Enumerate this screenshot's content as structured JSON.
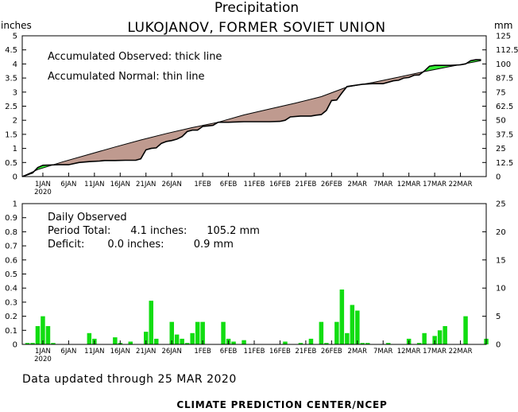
{
  "header": {
    "title": "Precipitation",
    "subtitle": "LUKOJANOV, FORMER SOVIET UNION",
    "left_unit": "inches",
    "right_unit": "mm"
  },
  "annotations": {
    "observed_note": "Accumulated Observed: thick line",
    "normal_note": "Accumulated Normal: thin line",
    "daily_title": "Daily Observed",
    "period_total": "Period Total:      4.1 inches:      105.2 mm",
    "deficit": "Deficit:       0.0 inches:         0.9 mm"
  },
  "footer": {
    "updated": "Data updated through 25 MAR 2020",
    "credit": "CLIMATE PREDICTION CENTER/NCEP"
  },
  "colors": {
    "deficit_fill": "#bf9a8f",
    "surplus_fill": "#33ee33",
    "bar": "#11dd11",
    "axis": "#000000"
  },
  "chart_data": [
    {
      "type": "area",
      "x_tick_labels": [
        "1JAN",
        "6JAN",
        "11JAN",
        "16JAN",
        "21JAN",
        "26JAN",
        "1FEB",
        "6FEB",
        "11FEB",
        "16FEB",
        "21FEB",
        "26FEB",
        "2MAR",
        "7MAR",
        "12MAR",
        "17MAR",
        "22MAR"
      ],
      "x_tick_year": "2020",
      "x_tick_days": [
        1,
        6,
        11,
        16,
        21,
        26,
        32,
        37,
        42,
        47,
        52,
        57,
        62,
        67,
        72,
        77,
        82
      ],
      "day_range": [
        -3,
        87
      ],
      "left_axis_ticks": [
        "0",
        "0.5",
        "1",
        "1.5",
        "2",
        "2.5",
        "3",
        "3.5",
        "4",
        "4.5",
        "5"
      ],
      "right_axis_ticks": [
        "0",
        "12.5",
        "25",
        "37.5",
        "50",
        "62.5",
        "75",
        "87.5",
        "100",
        "112.5",
        "125"
      ],
      "ylim_inches": [
        0,
        5
      ],
      "ylim_mm": [
        0,
        125
      ],
      "series": [
        {
          "name": "Accumulated Observed",
          "day": [
            -3,
            -1,
            0,
            1,
            4,
            6,
            8,
            10,
            12,
            13,
            15,
            17,
            19,
            20,
            21,
            22,
            23,
            24,
            25,
            26,
            27,
            28,
            29,
            30,
            31,
            32,
            33,
            34,
            35,
            37,
            40,
            42,
            45,
            47,
            48,
            49,
            51,
            52,
            53,
            54,
            55,
            56,
            57,
            58,
            59,
            60,
            63,
            65,
            67,
            69,
            70,
            71,
            72,
            73,
            74,
            75,
            76,
            77,
            78,
            80,
            82,
            83,
            84,
            85,
            86
          ],
          "inches": [
            0,
            0.13,
            0.32,
            0.4,
            0.42,
            0.42,
            0.5,
            0.53,
            0.55,
            0.57,
            0.57,
            0.58,
            0.58,
            0.63,
            0.95,
            1.0,
            1.02,
            1.18,
            1.25,
            1.28,
            1.33,
            1.42,
            1.6,
            1.65,
            1.65,
            1.78,
            1.8,
            1.82,
            1.93,
            1.93,
            1.95,
            1.95,
            1.95,
            1.96,
            2.0,
            2.12,
            2.15,
            2.15,
            2.15,
            2.18,
            2.2,
            2.35,
            2.7,
            2.72,
            2.97,
            3.2,
            3.28,
            3.3,
            3.3,
            3.4,
            3.42,
            3.5,
            3.52,
            3.6,
            3.61,
            3.75,
            3.92,
            3.95,
            3.95,
            3.95,
            3.97,
            4.0,
            4.12,
            4.15,
            4.15
          ]
        },
        {
          "name": "Accumulated Normal",
          "day": [
            -3,
            0,
            5,
            10,
            15,
            20,
            25,
            30,
            35,
            40,
            45,
            50,
            55,
            60,
            65,
            70,
            75,
            80,
            86
          ],
          "inches": [
            0,
            0.25,
            0.53,
            0.79,
            1.05,
            1.3,
            1.53,
            1.74,
            1.93,
            2.19,
            2.4,
            2.61,
            2.84,
            3.18,
            3.34,
            3.53,
            3.73,
            3.91,
            4.12
          ]
        }
      ]
    },
    {
      "type": "bar",
      "title": "Daily Observed",
      "day_range": [
        -3,
        87
      ],
      "left_axis_ticks": [
        "0",
        "0.1",
        "0.2",
        "0.3",
        "0.4",
        "0.5",
        "0.6",
        "0.7",
        "0.8",
        "0.9",
        "1"
      ],
      "right_axis_ticks": [
        "0",
        "5",
        "10",
        "15",
        "20",
        "25"
      ],
      "ylim_inches": [
        0,
        1
      ],
      "ylim_mm": [
        0,
        25
      ],
      "day": [
        -2,
        -1,
        0,
        1,
        2,
        3,
        10,
        11,
        15,
        16,
        18,
        21,
        22,
        23,
        26,
        27,
        28,
        29,
        30,
        31,
        32,
        36,
        37,
        38,
        40,
        48,
        51,
        53,
        55,
        56,
        58,
        59,
        60,
        61,
        62,
        63,
        64,
        68,
        72,
        74,
        75,
        77,
        78,
        79,
        83,
        87
      ],
      "inches": [
        0.01,
        0.01,
        0.13,
        0.2,
        0.13,
        0.01,
        0.08,
        0.04,
        0.05,
        0.01,
        0.02,
        0.09,
        0.31,
        0.04,
        0.16,
        0.07,
        0.04,
        0.01,
        0.08,
        0.16,
        0.16,
        0.16,
        0.04,
        0.02,
        0.03,
        0.02,
        0.01,
        0.04,
        0.16,
        0.01,
        0.16,
        0.39,
        0.08,
        0.28,
        0.24,
        0.01,
        0.01,
        0.01,
        0.04,
        0.01,
        0.08,
        0.06,
        0.1,
        0.13,
        0.2,
        0.04
      ]
    }
  ]
}
